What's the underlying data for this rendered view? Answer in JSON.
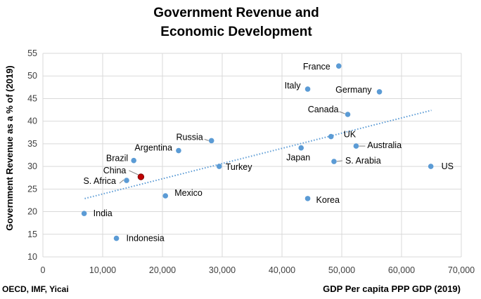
{
  "chart_data": {
    "type": "scatter",
    "title_lines": [
      "Government Revenue and",
      "Economic Development"
    ],
    "xlabel": "GDP Per capita PPP GDP (2019)",
    "ylabel": "Government Revenue as a % of (2019)",
    "source": "OECD, IMF, Yicai",
    "xlim": [
      0,
      70000
    ],
    "ylim": [
      10,
      55
    ],
    "x_ticks": [
      0,
      10000,
      20000,
      30000,
      40000,
      50000,
      60000,
      70000
    ],
    "x_tick_labels": [
      "0",
      "10,000",
      "20,000",
      "30,000",
      "40,000",
      "50,000",
      "60,000",
      "70,000"
    ],
    "y_ticks": [
      10,
      15,
      20,
      25,
      30,
      35,
      40,
      45,
      50,
      55
    ],
    "y_tick_labels": [
      "10",
      "15",
      "20",
      "25",
      "30",
      "35",
      "40",
      "45",
      "50",
      "55"
    ],
    "grid": "vertical and horizontal",
    "colors": {
      "point": "#5b9bd5",
      "highlight": "#c00000",
      "trendline": "#5b9bd5",
      "grid": "#d9d9d9"
    },
    "trendline": {
      "style": "dotted",
      "from": [
        7000,
        22.9
      ],
      "to": [
        65000,
        42.4
      ]
    },
    "points": [
      {
        "name": "India",
        "x": 6900,
        "y": 19.6
      },
      {
        "name": "Indonesia",
        "x": 12300,
        "y": 14.1
      },
      {
        "name": "S. Africa",
        "x": 14000,
        "y": 26.9
      },
      {
        "name": "China",
        "x": 16400,
        "y": 27.7,
        "highlight": true
      },
      {
        "name": "Brazil",
        "x": 15200,
        "y": 31.3
      },
      {
        "name": "Mexico",
        "x": 20500,
        "y": 23.5
      },
      {
        "name": "Argentina",
        "x": 22700,
        "y": 33.5
      },
      {
        "name": "Russia",
        "x": 28200,
        "y": 35.7
      },
      {
        "name": "Turkey",
        "x": 29500,
        "y": 30.0
      },
      {
        "name": "Japan",
        "x": 43200,
        "y": 34.1
      },
      {
        "name": "Korea",
        "x": 44300,
        "y": 22.9
      },
      {
        "name": "Italy",
        "x": 44300,
        "y": 47.1
      },
      {
        "name": "France",
        "x": 49500,
        "y": 52.2
      },
      {
        "name": "UK",
        "x": 48200,
        "y": 36.6
      },
      {
        "name": "S. Arabia",
        "x": 48700,
        "y": 31.1
      },
      {
        "name": "Canada",
        "x": 51000,
        "y": 41.5
      },
      {
        "name": "Australia",
        "x": 52400,
        "y": 34.5
      },
      {
        "name": "Germany",
        "x": 56300,
        "y": 46.5
      },
      {
        "name": "US",
        "x": 64900,
        "y": 30.0
      }
    ]
  }
}
